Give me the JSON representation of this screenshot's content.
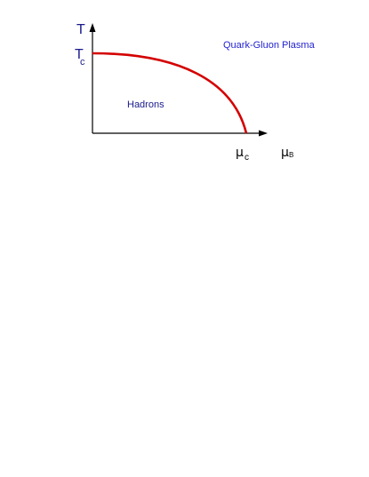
{
  "diagram": {
    "axis_y_label": "T",
    "axis_x_label": "μ",
    "axis_x_label_sub": "B",
    "tick_y_label": "T",
    "tick_y_label_sub": "c",
    "tick_x_label": "μ",
    "tick_x_label_sub": "c",
    "region_high": "Quark-Gluon Plasma",
    "region_low": "Hadrons",
    "colors": {
      "curve": "#d40000",
      "axis": "#000000",
      "axis_labels": "#1a1a8c",
      "region_high_text": "#1f1fd0",
      "region_low_text": "#1a1a8c"
    }
  }
}
